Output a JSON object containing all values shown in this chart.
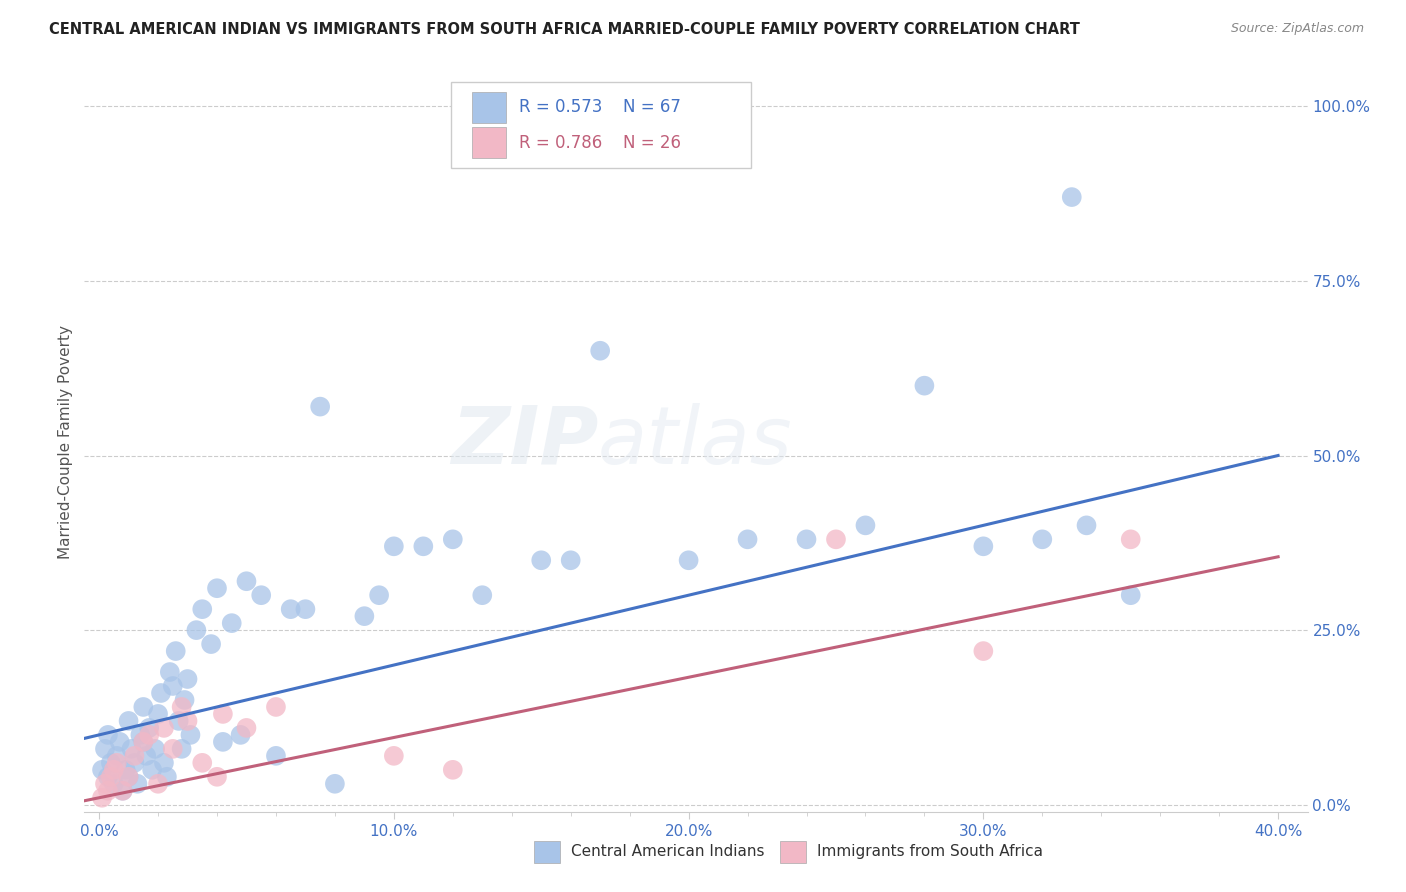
{
  "title": "CENTRAL AMERICAN INDIAN VS IMMIGRANTS FROM SOUTH AFRICA MARRIED-COUPLE FAMILY POVERTY CORRELATION CHART",
  "source": "Source: ZipAtlas.com",
  "xlabel_ticks": [
    "0.0%",
    "",
    "",
    "",
    "",
    "10.0%",
    "",
    "",
    "",
    "",
    "20.0%",
    "",
    "",
    "",
    "",
    "30.0%",
    "",
    "",
    "",
    "",
    "40.0%"
  ],
  "xlabel_tick_vals": [
    0.0,
    0.02,
    0.04,
    0.06,
    0.08,
    0.1,
    0.12,
    0.14,
    0.16,
    0.18,
    0.2,
    0.22,
    0.24,
    0.26,
    0.28,
    0.3,
    0.32,
    0.34,
    0.36,
    0.38,
    0.4
  ],
  "xlabel_ticks_display": [
    "0.0%",
    "10.0%",
    "20.0%",
    "30.0%",
    "40.0%"
  ],
  "xlabel_tick_vals_display": [
    0.0,
    0.1,
    0.2,
    0.3,
    0.4
  ],
  "ylabel": "Married-Couple Family Poverty",
  "ylabel_ticks": [
    "0.0%",
    "25.0%",
    "50.0%",
    "75.0%",
    "100.0%"
  ],
  "ylabel_tick_vals": [
    0.0,
    0.25,
    0.5,
    0.75,
    1.0
  ],
  "xlim": [
    -0.005,
    0.41
  ],
  "ylim": [
    -0.01,
    1.05
  ],
  "blue_R": 0.573,
  "blue_N": 67,
  "pink_R": 0.786,
  "pink_N": 26,
  "legend_label_blue": "Central American Indians",
  "legend_label_pink": "Immigrants from South Africa",
  "blue_color": "#a8c4e8",
  "blue_line_color": "#4472c4",
  "pink_color": "#f2b8c6",
  "pink_line_color": "#c0607a",
  "watermark_1": "ZIP",
  "watermark_2": "atlas",
  "blue_line_y0": 0.1,
  "blue_line_y1": 0.5,
  "pink_line_y0": 0.01,
  "pink_line_y1": 0.355,
  "blue_x": [
    0.001,
    0.002,
    0.003,
    0.003,
    0.004,
    0.005,
    0.006,
    0.007,
    0.008,
    0.009,
    0.01,
    0.01,
    0.011,
    0.012,
    0.013,
    0.014,
    0.015,
    0.015,
    0.016,
    0.017,
    0.018,
    0.019,
    0.02,
    0.021,
    0.022,
    0.023,
    0.024,
    0.025,
    0.026,
    0.027,
    0.028,
    0.029,
    0.03,
    0.031,
    0.033,
    0.035,
    0.038,
    0.04,
    0.042,
    0.045,
    0.048,
    0.05,
    0.055,
    0.06,
    0.065,
    0.07,
    0.075,
    0.08,
    0.09,
    0.095,
    0.1,
    0.11,
    0.12,
    0.13,
    0.15,
    0.16,
    0.17,
    0.2,
    0.22,
    0.24,
    0.26,
    0.28,
    0.3,
    0.32,
    0.33,
    0.335,
    0.35
  ],
  "blue_y": [
    0.05,
    0.08,
    0.04,
    0.1,
    0.06,
    0.03,
    0.07,
    0.09,
    0.02,
    0.05,
    0.04,
    0.12,
    0.08,
    0.06,
    0.03,
    0.1,
    0.14,
    0.09,
    0.07,
    0.11,
    0.05,
    0.08,
    0.13,
    0.16,
    0.06,
    0.04,
    0.19,
    0.17,
    0.22,
    0.12,
    0.08,
    0.15,
    0.18,
    0.1,
    0.25,
    0.28,
    0.23,
    0.31,
    0.09,
    0.26,
    0.1,
    0.32,
    0.3,
    0.07,
    0.28,
    0.28,
    0.57,
    0.03,
    0.27,
    0.3,
    0.37,
    0.37,
    0.38,
    0.3,
    0.35,
    0.35,
    0.65,
    0.35,
    0.38,
    0.38,
    0.4,
    0.6,
    0.37,
    0.38,
    0.87,
    0.4,
    0.3
  ],
  "pink_x": [
    0.001,
    0.002,
    0.003,
    0.004,
    0.005,
    0.006,
    0.008,
    0.01,
    0.012,
    0.015,
    0.017,
    0.02,
    0.022,
    0.025,
    0.028,
    0.03,
    0.035,
    0.04,
    0.042,
    0.05,
    0.06,
    0.1,
    0.12,
    0.25,
    0.3,
    0.35
  ],
  "pink_y": [
    0.01,
    0.03,
    0.02,
    0.04,
    0.05,
    0.06,
    0.02,
    0.04,
    0.07,
    0.09,
    0.1,
    0.03,
    0.11,
    0.08,
    0.14,
    0.12,
    0.06,
    0.04,
    0.13,
    0.11,
    0.14,
    0.07,
    0.05,
    0.38,
    0.22,
    0.38
  ]
}
